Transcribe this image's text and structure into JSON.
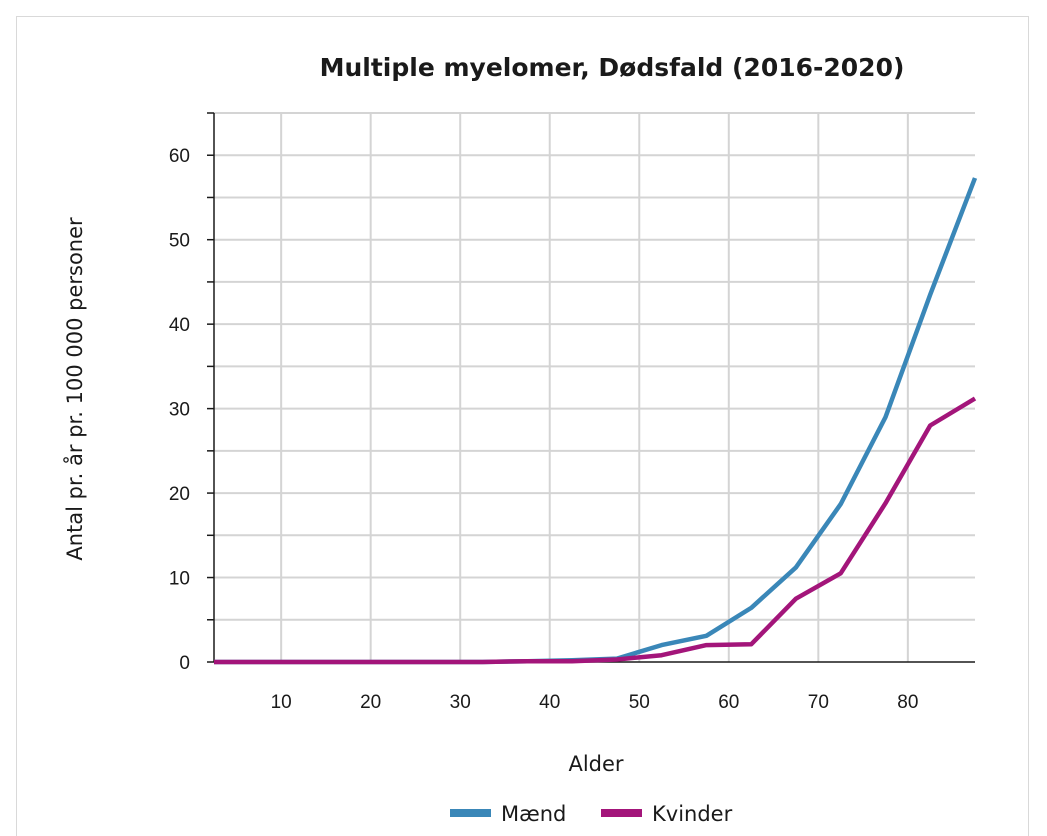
{
  "chart_data": {
    "type": "line",
    "title": "Multiple myelomer, Dødsfald (2016-2020)",
    "xlabel": "Alder",
    "ylabel": "Antal pr. år pr. 100 000 personer",
    "xlim": [
      2.5,
      87.5
    ],
    "ylim": [
      0,
      65
    ],
    "x_ticks": [
      10,
      20,
      30,
      40,
      50,
      60,
      70,
      80
    ],
    "y_ticks": [
      0,
      10,
      20,
      30,
      40,
      50,
      60
    ],
    "grid": true,
    "legend_position": "bottom",
    "x": [
      2.5,
      7.5,
      12.5,
      17.5,
      22.5,
      27.5,
      32.5,
      37.5,
      42.5,
      47.5,
      52.5,
      57.5,
      62.5,
      67.5,
      72.5,
      77.5,
      82.5,
      87.5
    ],
    "series": [
      {
        "name": "Mænd",
        "color": "#3a87b8",
        "values": [
          0,
          0,
          0,
          0,
          0,
          0,
          0,
          0.1,
          0.2,
          0.4,
          2.0,
          3.1,
          6.4,
          11.2,
          18.7,
          29.0,
          43.5,
          57.3
        ]
      },
      {
        "name": "Kvinder",
        "color": "#a3157a",
        "values": [
          0,
          0,
          0,
          0,
          0,
          0,
          0,
          0.1,
          0.1,
          0.3,
          0.8,
          2.0,
          2.1,
          7.5,
          10.5,
          18.8,
          28.0,
          31.2
        ]
      }
    ]
  }
}
